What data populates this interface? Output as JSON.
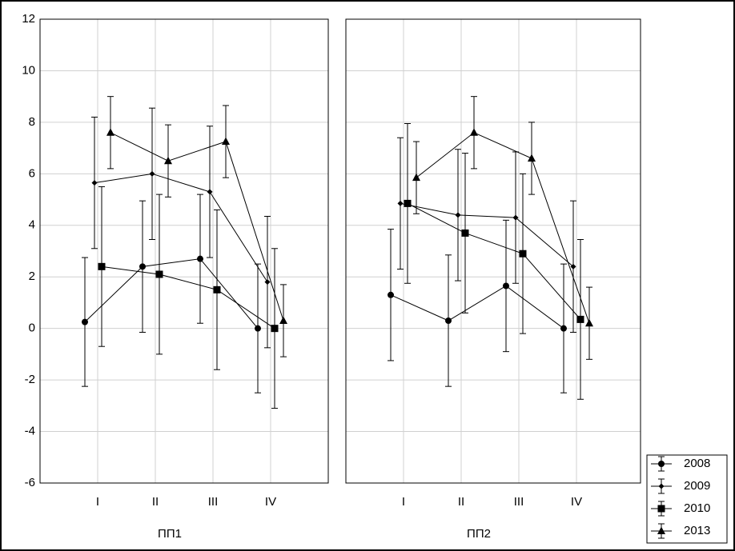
{
  "chart_data": [
    {
      "type": "line",
      "xlabel": "ПП1",
      "categories": [
        "I",
        "II",
        "III",
        "IV"
      ],
      "ylim": [
        -6,
        12
      ],
      "yticks": [
        -6,
        -4,
        -2,
        0,
        2,
        4,
        6,
        8,
        10,
        12
      ],
      "grid": true,
      "series": [
        {
          "name": "2008",
          "color": "#000000",
          "marker": "circle",
          "values": [
            0.25,
            2.4,
            2.7,
            0
          ],
          "errors": [
            2.5,
            2.55,
            2.5,
            2.5
          ]
        },
        {
          "name": "2009",
          "color": "#000000",
          "marker": "diamond",
          "values": [
            5.65,
            6.0,
            5.3,
            1.8
          ],
          "errors": [
            2.55,
            2.55,
            2.55,
            2.55
          ]
        },
        {
          "name": "2010",
          "color": "#000000",
          "marker": "square",
          "values": [
            2.4,
            2.1,
            1.5,
            0
          ],
          "errors": [
            3.1,
            3.1,
            3.1,
            3.1
          ]
        },
        {
          "name": "2013",
          "color": "#000000",
          "marker": "triangle",
          "values": [
            7.6,
            6.5,
            7.25,
            0.3
          ],
          "errors": [
            1.4,
            1.4,
            1.4,
            1.4
          ]
        }
      ]
    },
    {
      "type": "line",
      "xlabel": "ПП2",
      "categories": [
        "I",
        "II",
        "III",
        "IV"
      ],
      "ylim": [
        -6,
        12
      ],
      "yticks": [
        -6,
        -4,
        -2,
        0,
        2,
        4,
        6,
        8,
        10,
        12
      ],
      "grid": true,
      "series": [
        {
          "name": "2008",
          "color": "#000000",
          "marker": "circle",
          "values": [
            1.3,
            0.3,
            1.65,
            0
          ],
          "errors": [
            2.55,
            2.55,
            2.55,
            2.5
          ]
        },
        {
          "name": "2009",
          "color": "#000000",
          "marker": "diamond",
          "values": [
            4.85,
            4.4,
            4.3,
            2.4
          ],
          "errors": [
            2.55,
            2.55,
            2.55,
            2.55
          ]
        },
        {
          "name": "2010",
          "color": "#000000",
          "marker": "square",
          "values": [
            4.85,
            3.7,
            2.9,
            0.35
          ],
          "errors": [
            3.1,
            3.1,
            3.1,
            3.1
          ]
        },
        {
          "name": "2013",
          "color": "#000000",
          "marker": "triangle",
          "values": [
            5.85,
            7.6,
            6.6,
            0.2
          ],
          "errors": [
            1.4,
            1.4,
            1.4,
            1.4
          ]
        }
      ]
    }
  ]
}
